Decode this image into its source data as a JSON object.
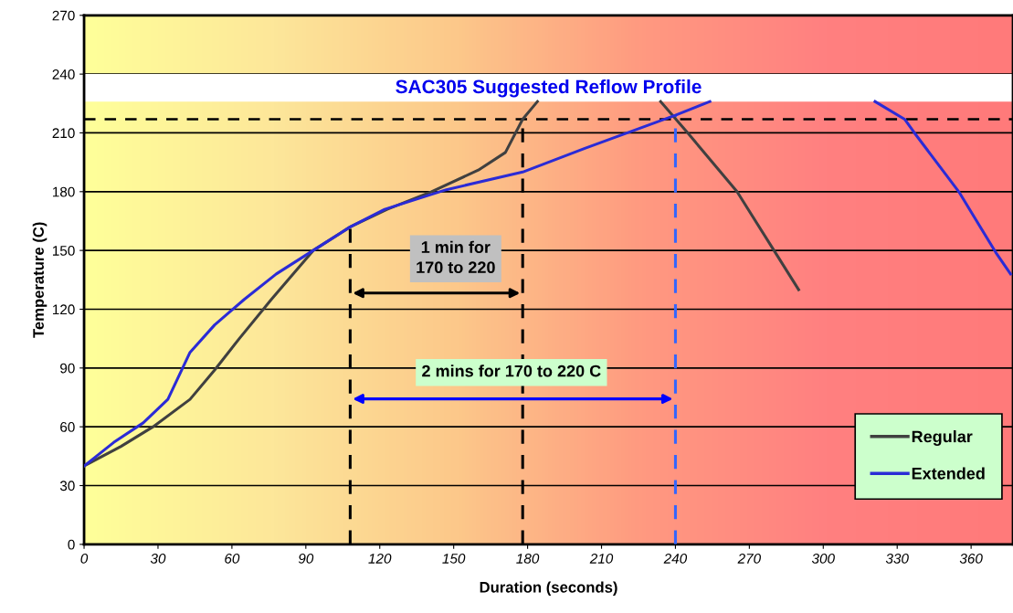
{
  "chart_data": {
    "type": "line",
    "title": "SAC305 Suggested Reflow Profile",
    "xlabel": "Duration (seconds)",
    "ylabel": "Temperature (C)",
    "series": [
      {
        "name": "Regular",
        "color": "#404040",
        "x": [
          0,
          15,
          28,
          43,
          53,
          63,
          76,
          93,
          108,
          123,
          141,
          160,
          171,
          178,
          184,
          209,
          234,
          245,
          265,
          280,
          290
        ],
        "values": [
          40,
          50,
          60,
          74,
          89,
          105,
          125,
          150,
          162,
          171,
          180,
          191,
          200,
          217,
          226,
          null,
          226,
          210,
          180,
          150,
          130
        ]
      },
      {
        "name": "Extended",
        "color": "#2b2bd6",
        "x": [
          0,
          12,
          24,
          34,
          43,
          53,
          65,
          78,
          93,
          108,
          122,
          147,
          178,
          203,
          240,
          254,
          288,
          321,
          333,
          337,
          355,
          370,
          376
        ],
        "values": [
          40,
          52,
          62,
          74,
          98,
          112,
          125,
          138,
          150,
          162,
          171,
          181,
          190,
          202,
          219,
          226,
          null,
          226,
          217,
          210,
          180,
          149,
          138
        ]
      }
    ],
    "xlim": [
      0,
      377
    ],
    "ylim": [
      0,
      270
    ],
    "xticks": [
      0,
      30,
      60,
      90,
      120,
      150,
      180,
      210,
      240,
      270,
      300,
      330,
      360
    ],
    "yticks": [
      0,
      30,
      60,
      90,
      120,
      150,
      180,
      210,
      240,
      270
    ],
    "ref_lines": [
      {
        "axis": "y",
        "value": 217,
        "color": "#000000",
        "line_style": "dashed"
      },
      {
        "axis": "x",
        "value": 108,
        "color": "#000000",
        "line_style": "dashed"
      },
      {
        "axis": "x",
        "value": 178,
        "color": "#000000",
        "line_style": "dashed"
      },
      {
        "axis": "x",
        "value": 240,
        "color": "#3366ff",
        "line_style": "dashed"
      }
    ],
    "annotations": [
      "1 min for\n170 to 220",
      "2 mins for 170 to 220 C"
    ],
    "bands": [
      {
        "axis": "y",
        "from": 226,
        "to": 240,
        "color": "#ffffff"
      }
    ],
    "grid": "y",
    "legend": "bottom right",
    "marker": "none",
    "line_style": "solid"
  }
}
